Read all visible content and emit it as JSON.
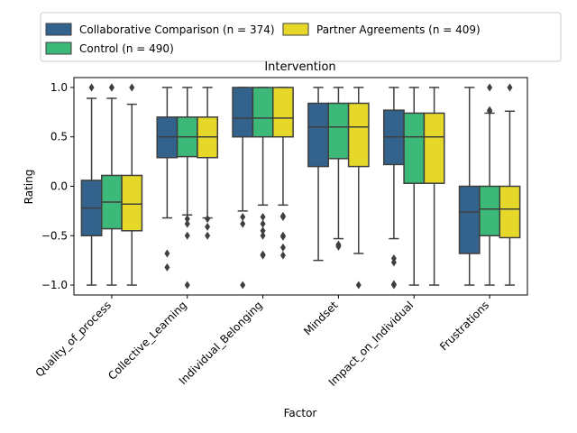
{
  "chart_data": {
    "type": "box",
    "title": "Intervention",
    "xlabel": "Factor",
    "ylabel": "Rating",
    "ylim": [
      -1.1,
      1.1
    ],
    "yticks": [
      "1.0",
      "0.5",
      "0.0",
      "−0.5",
      "−1.0"
    ],
    "ytick_values": [
      1.0,
      0.5,
      0.0,
      -0.5,
      -1.0
    ],
    "grid": false,
    "legend_position": "top",
    "categories": [
      "Quality_of_process",
      "Collective_Learning",
      "Individual_Belonging",
      "Mindset",
      "Impact_on_Individual",
      "Frustrations"
    ],
    "series": [
      {
        "name": "Collaborative Comparison (n = 374)",
        "color": "#33638d",
        "boxes": [
          {
            "q1": -0.5,
            "median": -0.22,
            "q3": 0.06,
            "whislo": -1.0,
            "whishi": 0.89,
            "fliers": [
              1.0
            ]
          },
          {
            "q1": 0.29,
            "median": 0.5,
            "q3": 0.7,
            "whislo": -0.32,
            "whishi": 1.0,
            "fliers": [
              -0.68,
              -0.82
            ]
          },
          {
            "q1": 0.5,
            "median": 0.69,
            "q3": 1.0,
            "whislo": -0.25,
            "whishi": 1.0,
            "fliers": [
              -0.31,
              -0.38,
              -1.0
            ]
          },
          {
            "q1": 0.2,
            "median": 0.6,
            "q3": 0.84,
            "whislo": -0.75,
            "whishi": 1.0,
            "fliers": []
          },
          {
            "q1": 0.22,
            "median": 0.5,
            "q3": 0.77,
            "whislo": -0.53,
            "whishi": 1.0,
            "fliers": [
              -0.73,
              -0.77,
              -0.99,
              -1.0
            ]
          },
          {
            "q1": -0.68,
            "median": -0.26,
            "q3": 0.0,
            "whislo": -1.0,
            "whishi": 1.0,
            "fliers": []
          }
        ]
      },
      {
        "name": "Control (n = 490)",
        "color": "#3cb878",
        "boxes": [
          {
            "q1": -0.43,
            "median": -0.16,
            "q3": 0.11,
            "whislo": -1.0,
            "whishi": 0.89,
            "fliers": [
              1.0,
              1.0
            ]
          },
          {
            "q1": 0.3,
            "median": 0.5,
            "q3": 0.7,
            "whislo": -0.29,
            "whishi": 1.0,
            "fliers": [
              -0.33,
              -0.38,
              -0.5,
              -1.0
            ]
          },
          {
            "q1": 0.5,
            "median": 0.69,
            "q3": 1.0,
            "whislo": -0.19,
            "whishi": 1.0,
            "fliers": [
              -0.31,
              -0.38,
              -0.45,
              -0.5,
              -0.69,
              -0.7
            ]
          },
          {
            "q1": 0.28,
            "median": 0.6,
            "q3": 0.84,
            "whislo": -0.53,
            "whishi": 1.0,
            "fliers": [
              -0.59,
              -0.6,
              -0.61
            ]
          },
          {
            "q1": 0.03,
            "median": 0.5,
            "q3": 0.74,
            "whislo": -1.0,
            "whishi": 1.0,
            "fliers": []
          },
          {
            "q1": -0.5,
            "median": -0.23,
            "q3": 0.0,
            "whislo": -1.0,
            "whishi": 0.74,
            "fliers": [
              0.77,
              0.76,
              1.0
            ]
          }
        ]
      },
      {
        "name": "Partner Agreements (n = 409)",
        "color": "#e5d829",
        "boxes": [
          {
            "q1": -0.45,
            "median": -0.18,
            "q3": 0.11,
            "whislo": -1.0,
            "whishi": 0.83,
            "fliers": [
              1.0
            ]
          },
          {
            "q1": 0.29,
            "median": 0.5,
            "q3": 0.7,
            "whislo": -0.32,
            "whishi": 1.0,
            "fliers": [
              -0.33,
              -0.41,
              -0.5
            ]
          },
          {
            "q1": 0.5,
            "median": 0.69,
            "q3": 1.0,
            "whislo": -0.19,
            "whishi": 1.0,
            "fliers": [
              -0.3,
              -0.31,
              -0.5,
              -0.51,
              -0.62,
              -0.7
            ]
          },
          {
            "q1": 0.2,
            "median": 0.6,
            "q3": 0.84,
            "whislo": -0.68,
            "whishi": 1.0,
            "fliers": [
              -1.0
            ]
          },
          {
            "q1": 0.03,
            "median": 0.5,
            "q3": 0.74,
            "whislo": -1.0,
            "whishi": 1.0,
            "fliers": []
          },
          {
            "q1": -0.52,
            "median": -0.23,
            "q3": 0.0,
            "whislo": -1.0,
            "whishi": 0.76,
            "fliers": [
              1.0
            ]
          }
        ]
      }
    ]
  }
}
